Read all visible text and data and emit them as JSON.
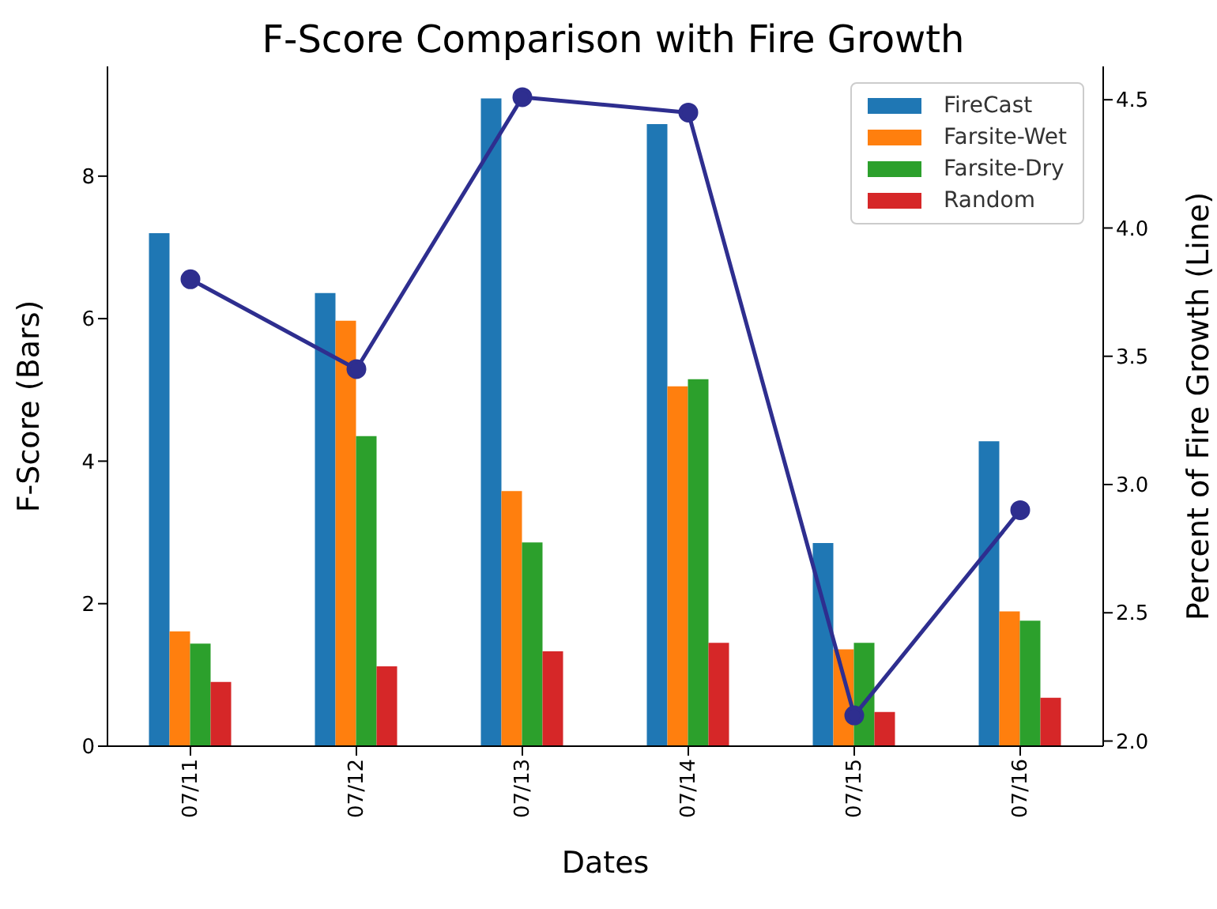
{
  "chart_data": {
    "type": "bar",
    "title": "F-Score Comparison with Fire Growth",
    "xlabel": "Dates",
    "ylabel": "F-Score (Bars)",
    "y2label": "Percent of Fire Growth (Line)",
    "categories": [
      "07/11",
      "07/12",
      "07/13",
      "07/14",
      "07/15",
      "07/16"
    ],
    "series": [
      {
        "name": "FireCast",
        "color": "#1f77b4",
        "values": [
          7.2,
          6.36,
          9.09,
          8.73,
          2.85,
          4.28
        ]
      },
      {
        "name": "Farsite-Wet",
        "color": "#ff7f0e",
        "values": [
          1.61,
          5.97,
          3.58,
          5.05,
          1.36,
          1.89
        ]
      },
      {
        "name": "Farsite-Dry",
        "color": "#2ca02c",
        "values": [
          1.44,
          4.35,
          2.86,
          5.15,
          1.45,
          1.76
        ]
      },
      {
        "name": "Random",
        "color": "#d62728",
        "values": [
          0.9,
          1.12,
          1.33,
          1.45,
          0.48,
          0.68
        ]
      },
      {
        "type": "line",
        "axis": "y2",
        "color": "#2e2e8f",
        "marker": "circle",
        "values": [
          3.8,
          3.45,
          4.51,
          4.45,
          2.1,
          2.9
        ]
      }
    ],
    "ylim": [
      0,
      9.54
    ],
    "yticks": [
      0,
      2,
      4,
      6,
      8
    ],
    "y2lim": [
      1.98,
      4.63
    ],
    "y2ticks": [
      {
        "value": 2,
        "label": "2.0"
      },
      {
        "value": 2.5,
        "label": "2.5"
      },
      {
        "value": 3,
        "label": "3.0"
      },
      {
        "value": 3.5,
        "label": "3.5"
      },
      {
        "value": 4,
        "label": "4.0"
      },
      {
        "value": 4.5,
        "label": "4.5"
      }
    ],
    "grid": false,
    "legend": "top right"
  }
}
